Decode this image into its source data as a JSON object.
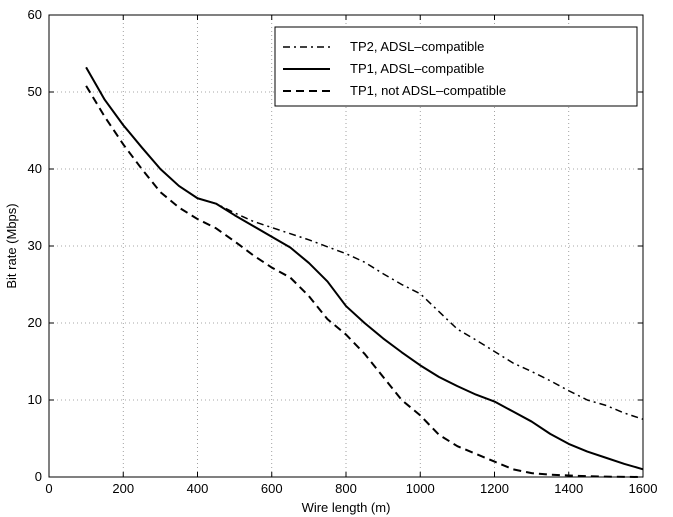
{
  "chart_data": {
    "type": "line",
    "title": "",
    "xlabel": "Wire length (m)",
    "ylabel": "Bit rate (Mbps)",
    "xlim": [
      0,
      1600
    ],
    "ylim": [
      0,
      60
    ],
    "xticks": [
      0,
      200,
      400,
      600,
      800,
      1000,
      1200,
      1400,
      1600
    ],
    "yticks": [
      0,
      10,
      20,
      30,
      40,
      50,
      60
    ],
    "grid": true,
    "legend_position": "top-right",
    "series": [
      {
        "name": "TP2, ADSL–compatible",
        "line_style": "dash-dot",
        "color": "#000000",
        "x": [
          100,
          150,
          200,
          250,
          300,
          350,
          400,
          450,
          500,
          550,
          600,
          650,
          700,
          750,
          800,
          850,
          900,
          950,
          1000,
          1050,
          1100,
          1150,
          1200,
          1250,
          1300,
          1350,
          1400,
          1450,
          1500,
          1550,
          1600
        ],
        "y": [
          53.2,
          49.0,
          45.7,
          42.8,
          40.0,
          37.8,
          36.2,
          35.5,
          34.3,
          33.2,
          32.4,
          31.6,
          30.8,
          29.9,
          29.0,
          27.9,
          26.4,
          25.0,
          23.8,
          21.5,
          19.2,
          17.8,
          16.3,
          14.8,
          13.7,
          12.5,
          11.2,
          10.0,
          9.3,
          8.3,
          7.5
        ]
      },
      {
        "name": "TP1, ADSL–compatible",
        "line_style": "solid",
        "color": "#000000",
        "x": [
          100,
          150,
          200,
          250,
          300,
          350,
          400,
          450,
          500,
          550,
          600,
          650,
          700,
          750,
          800,
          850,
          900,
          950,
          1000,
          1050,
          1100,
          1150,
          1200,
          1250,
          1300,
          1350,
          1400,
          1450,
          1500,
          1550,
          1600
        ],
        "y": [
          53.2,
          49.0,
          45.7,
          42.8,
          40.0,
          37.8,
          36.2,
          35.5,
          34.0,
          32.6,
          31.2,
          29.8,
          27.8,
          25.4,
          22.2,
          20.0,
          18.0,
          16.2,
          14.5,
          13.0,
          11.8,
          10.7,
          9.8,
          8.5,
          7.2,
          5.6,
          4.3,
          3.3,
          2.5,
          1.7,
          1.0
        ]
      },
      {
        "name": "TP1, not ADSL–compatible",
        "line_style": "dashed",
        "color": "#000000",
        "x": [
          100,
          150,
          200,
          250,
          300,
          350,
          400,
          450,
          500,
          550,
          600,
          650,
          700,
          750,
          800,
          850,
          900,
          950,
          1000,
          1050,
          1100,
          1150,
          1200,
          1250,
          1300,
          1350,
          1400,
          1450,
          1500,
          1550,
          1600
        ],
        "y": [
          50.8,
          46.8,
          43.2,
          40.0,
          37.0,
          35.0,
          33.5,
          32.3,
          30.6,
          28.8,
          27.2,
          25.9,
          23.5,
          20.5,
          18.5,
          16.0,
          13.0,
          10.0,
          8.0,
          5.5,
          4.0,
          3.0,
          2.0,
          1.0,
          0.5,
          0.3,
          0.2,
          0.1,
          0.05,
          0.02,
          0.0
        ]
      }
    ]
  }
}
